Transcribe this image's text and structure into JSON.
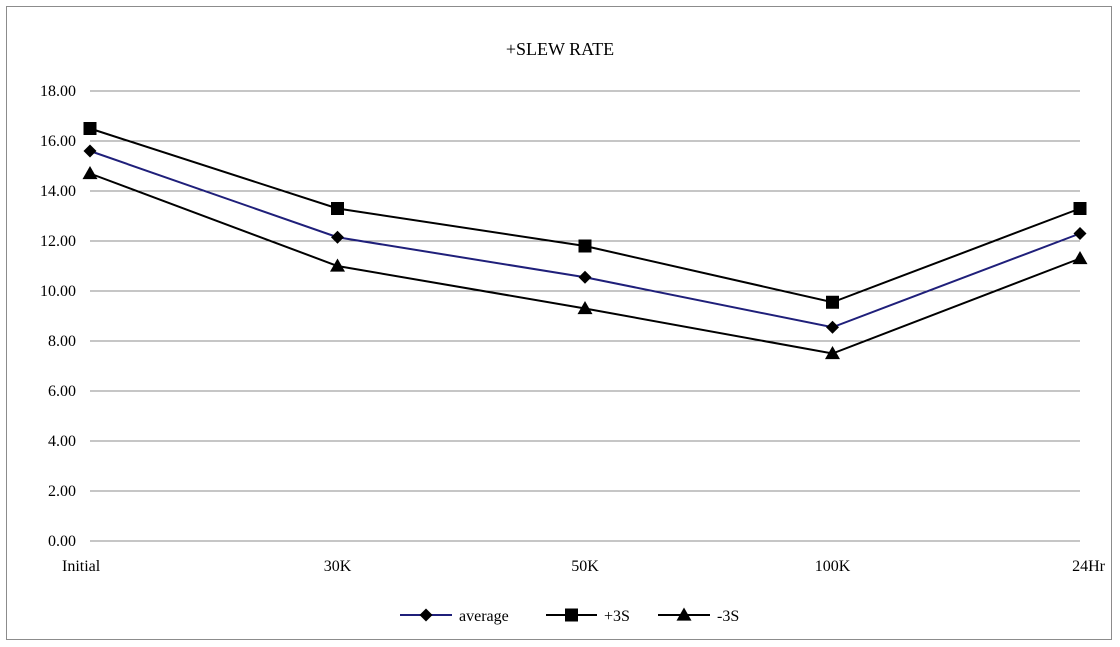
{
  "chart_data": {
    "type": "line",
    "title": "+SLEW RATE",
    "xlabel": "",
    "ylabel": "",
    "categories": [
      "Initial",
      "30K",
      "50K",
      "100K",
      "24Hr"
    ],
    "ylim": [
      0,
      18
    ],
    "yticks": [
      "0.00",
      "2.00",
      "4.00",
      "6.00",
      "8.00",
      "10.00",
      "12.00",
      "14.00",
      "16.00",
      "18.00"
    ],
    "grid": "horizontal",
    "legend_position": "bottom",
    "series": [
      {
        "name": "average",
        "values": [
          15.6,
          12.15,
          10.55,
          8.55,
          12.3
        ],
        "color": "#1f1f7a",
        "marker": "diamond"
      },
      {
        "name": "+3S",
        "values": [
          16.5,
          13.3,
          11.8,
          9.55,
          13.3
        ],
        "color": "#000000",
        "marker": "square"
      },
      {
        "name": "-3S",
        "values": [
          14.7,
          11.0,
          9.3,
          7.5,
          11.3
        ],
        "color": "#000000",
        "marker": "triangle"
      }
    ]
  }
}
